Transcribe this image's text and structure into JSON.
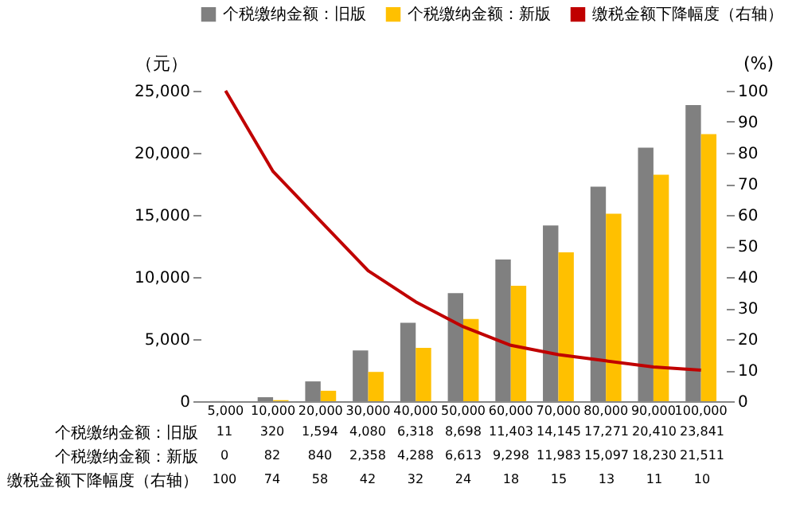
{
  "chart_data": {
    "type": "bar",
    "categories": [
      "5,000",
      "10,000",
      "20,000",
      "30,000",
      "40,000",
      "50,000",
      "60,000",
      "70,000",
      "80,000",
      "90,000",
      "100,000"
    ],
    "series": [
      {
        "name": "个税缴纳金额：旧版",
        "color": "#808080",
        "values": [
          11,
          320,
          1594,
          4080,
          6318,
          8698,
          11403,
          14145,
          17271,
          20410,
          23841
        ],
        "value_labels": [
          "11",
          "320",
          "1,594",
          "4,080",
          "6,318",
          "8,698",
          "11,403",
          "14,145",
          "17,271",
          "20,410",
          "23,841"
        ]
      },
      {
        "name": "个税缴纳金额：新版",
        "color": "#ffc000",
        "values": [
          0,
          82,
          840,
          2358,
          4288,
          6613,
          9298,
          11983,
          15097,
          18230,
          21511
        ],
        "value_labels": [
          "0",
          "82",
          "840",
          "2,358",
          "4,288",
          "6,613",
          "9,298",
          "11,983",
          "15,097",
          "18,230",
          "21,511"
        ]
      },
      {
        "name": "缴税金额下降幅度（右轴）",
        "color": "#c00000",
        "type": "line",
        "axis": "y2",
        "values": [
          100,
          74,
          58,
          42,
          32,
          24,
          18,
          15,
          13,
          11,
          10
        ],
        "value_labels": [
          "100",
          "74",
          "58",
          "42",
          "32",
          "24",
          "18",
          "15",
          "13",
          "11",
          "10"
        ]
      }
    ],
    "ylabel": "（元）",
    "y2label": "(%)",
    "ylim": [
      0,
      25000
    ],
    "yticks": [
      0,
      {
        "value": 5000,
        "label": "5,000"
      },
      {
        "value": 10000,
        "label": "10,000"
      },
      {
        "value": 15000,
        "label": "15,000"
      },
      {
        "value": 20000,
        "label": "20,000"
      },
      {
        "value": 25000,
        "label": "25,000"
      }
    ],
    "y2lim": [
      0,
      100
    ],
    "y2ticks": [
      0,
      10,
      20,
      30,
      40,
      50,
      60,
      70,
      80,
      90,
      100
    ],
    "legend": "top"
  }
}
